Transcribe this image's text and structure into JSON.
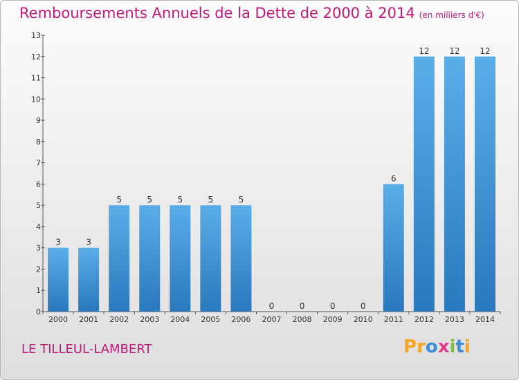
{
  "header": {
    "title": "Remboursements Annuels de la Dette de 2000 à 2014",
    "subtitle": "(en milliers d'€)"
  },
  "footer": {
    "location": "LE TILLEUL-LAMBERT",
    "logo_text": [
      "P",
      "r",
      "o",
      "x",
      "i",
      "t",
      "i"
    ]
  },
  "colors": {
    "title": "#c0187a",
    "bar_light": "#5aaee8",
    "bar_dark": "#2a78bd",
    "logo_letters": [
      "#f5a623",
      "#f5a623",
      "#3a8fd8",
      "#e03c8a",
      "#7bbf3a",
      "#3a8fd8",
      "#f5a623"
    ]
  },
  "chart_data": {
    "type": "bar",
    "categories": [
      "2000",
      "2001",
      "2002",
      "2003",
      "2004",
      "2005",
      "2006",
      "2007",
      "2008",
      "2009",
      "2010",
      "2011",
      "2012",
      "2013",
      "2014"
    ],
    "values": [
      3,
      3,
      5,
      5,
      5,
      5,
      5,
      0,
      0,
      0,
      0,
      6,
      12,
      12,
      12
    ],
    "value_labels": [
      "3",
      "3",
      "5",
      "5",
      "5",
      "5",
      "5",
      "0",
      "0",
      "0",
      "0",
      "6",
      "12",
      "12",
      "12"
    ],
    "ylim": [
      0,
      13
    ],
    "yticks": [
      "0",
      "1",
      "2",
      "3",
      "4",
      "5",
      "6",
      "7",
      "8",
      "9",
      "10",
      "11",
      "12",
      "13"
    ],
    "grid": false,
    "legend": "none"
  }
}
